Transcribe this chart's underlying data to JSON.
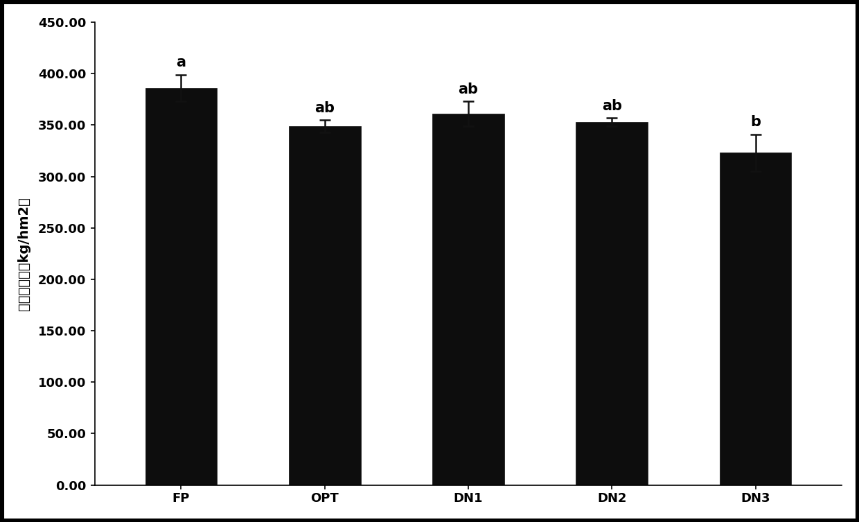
{
  "categories": [
    "FP",
    "OPT",
    "DN1",
    "DN2",
    "DN3"
  ],
  "values": [
    386.0,
    349.0,
    361.0,
    353.0,
    323.0
  ],
  "errors": [
    13.0,
    6.0,
    12.0,
    4.0,
    18.0
  ],
  "sig_labels": [
    "a",
    "ab",
    "ab",
    "ab",
    "b"
  ],
  "bar_color": "#0d0d0d",
  "edge_color": "#0d0d0d",
  "error_color": "#111111",
  "ylabel": "全氮淤失量（kg/hm2）",
  "ylim": [
    0,
    450
  ],
  "yticks": [
    0.0,
    50.0,
    100.0,
    150.0,
    200.0,
    250.0,
    300.0,
    350.0,
    400.0,
    450.0
  ],
  "ytick_labels": [
    "0.00",
    "50.00",
    "100.00",
    "150.00",
    "200.00",
    "250.00",
    "300.00",
    "350.00",
    "400.00",
    "450.00"
  ],
  "background_color": "#ffffff",
  "bar_width": 0.5,
  "sig_fontsize": 15,
  "tick_fontsize": 13,
  "ylabel_fontsize": 14,
  "border_color": "#000000",
  "border_linewidth": 8
}
